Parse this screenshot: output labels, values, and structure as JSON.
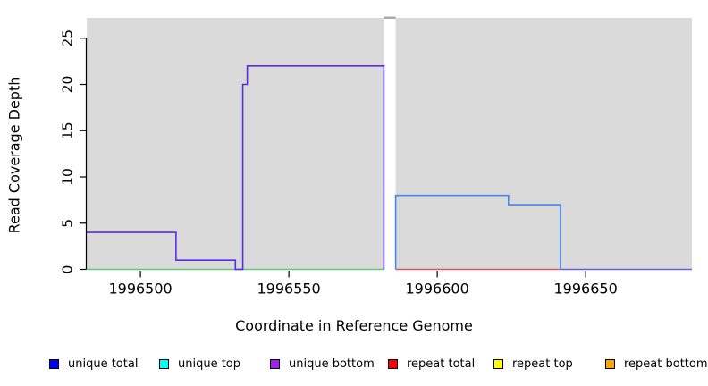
{
  "chart_data": {
    "type": "line",
    "title": "",
    "xlabel": "Coordinate in Reference Genome",
    "ylabel": "Read Coverage Depth",
    "xlim": [
      1996481.9,
      1996685.8
    ],
    "ylim": [
      0,
      27.2
    ],
    "x_ticks": [
      1996500,
      1996550,
      1996600,
      1996650
    ],
    "y_ticks": [
      0,
      5,
      10,
      15,
      20,
      25
    ],
    "grid": false,
    "plot_background_color": "#DADADA",
    "background_regions": [
      {
        "name": "left-coverage-region",
        "x0": 1996481.9,
        "x1": 1996582
      },
      {
        "name": "right-coverage-region",
        "x0": 1996586,
        "x1": 1996685.8
      }
    ],
    "gap_region": {
      "name": "no-coverage-gap",
      "x0": 1996582,
      "x1": 1996586,
      "cap_color": "#ABABAB"
    },
    "series": [
      {
        "name": "baseline-left",
        "color": "#63C878",
        "points": [
          [
            1996481.9,
            0
          ],
          [
            1996582,
            0
          ]
        ]
      },
      {
        "name": "unique-bottom-left",
        "color": "#5A2BE0",
        "points": [
          [
            1996481.9,
            4
          ],
          [
            1996512,
            4
          ],
          [
            1996512,
            1
          ],
          [
            1996532,
            1
          ],
          [
            1996532,
            0
          ],
          [
            1996534.5,
            0
          ],
          [
            1996534.5,
            20
          ],
          [
            1996536,
            20
          ],
          [
            1996536,
            22
          ],
          [
            1996582,
            22
          ],
          [
            1996582,
            0
          ]
        ]
      },
      {
        "name": "repeat-baseline-right",
        "color": "#DC5566",
        "points": [
          [
            1996586,
            0
          ],
          [
            1996641.5,
            0
          ]
        ]
      },
      {
        "name": "baseline-far-right",
        "color": "#6161EE",
        "points": [
          [
            1996641.5,
            0
          ],
          [
            1996685.8,
            0
          ]
        ]
      },
      {
        "name": "unique-total-right",
        "color": "#4488EE",
        "points": [
          [
            1996586,
            0
          ],
          [
            1996586,
            8
          ],
          [
            1996624,
            8
          ],
          [
            1996624,
            7
          ],
          [
            1996641.5,
            7
          ],
          [
            1996641.5,
            0
          ]
        ]
      }
    ],
    "legend_position": "bottom",
    "legend": [
      {
        "label": "unique total",
        "color": "#0000FF"
      },
      {
        "label": "unique top",
        "color": "#00FFFF"
      },
      {
        "label": "unique bottom",
        "color": "#A020F0"
      },
      {
        "label": "repeat total",
        "color": "#FF0000"
      },
      {
        "label": "repeat top",
        "color": "#FFFF00"
      },
      {
        "label": "repeat bottom",
        "color": "#FFA500"
      }
    ]
  }
}
